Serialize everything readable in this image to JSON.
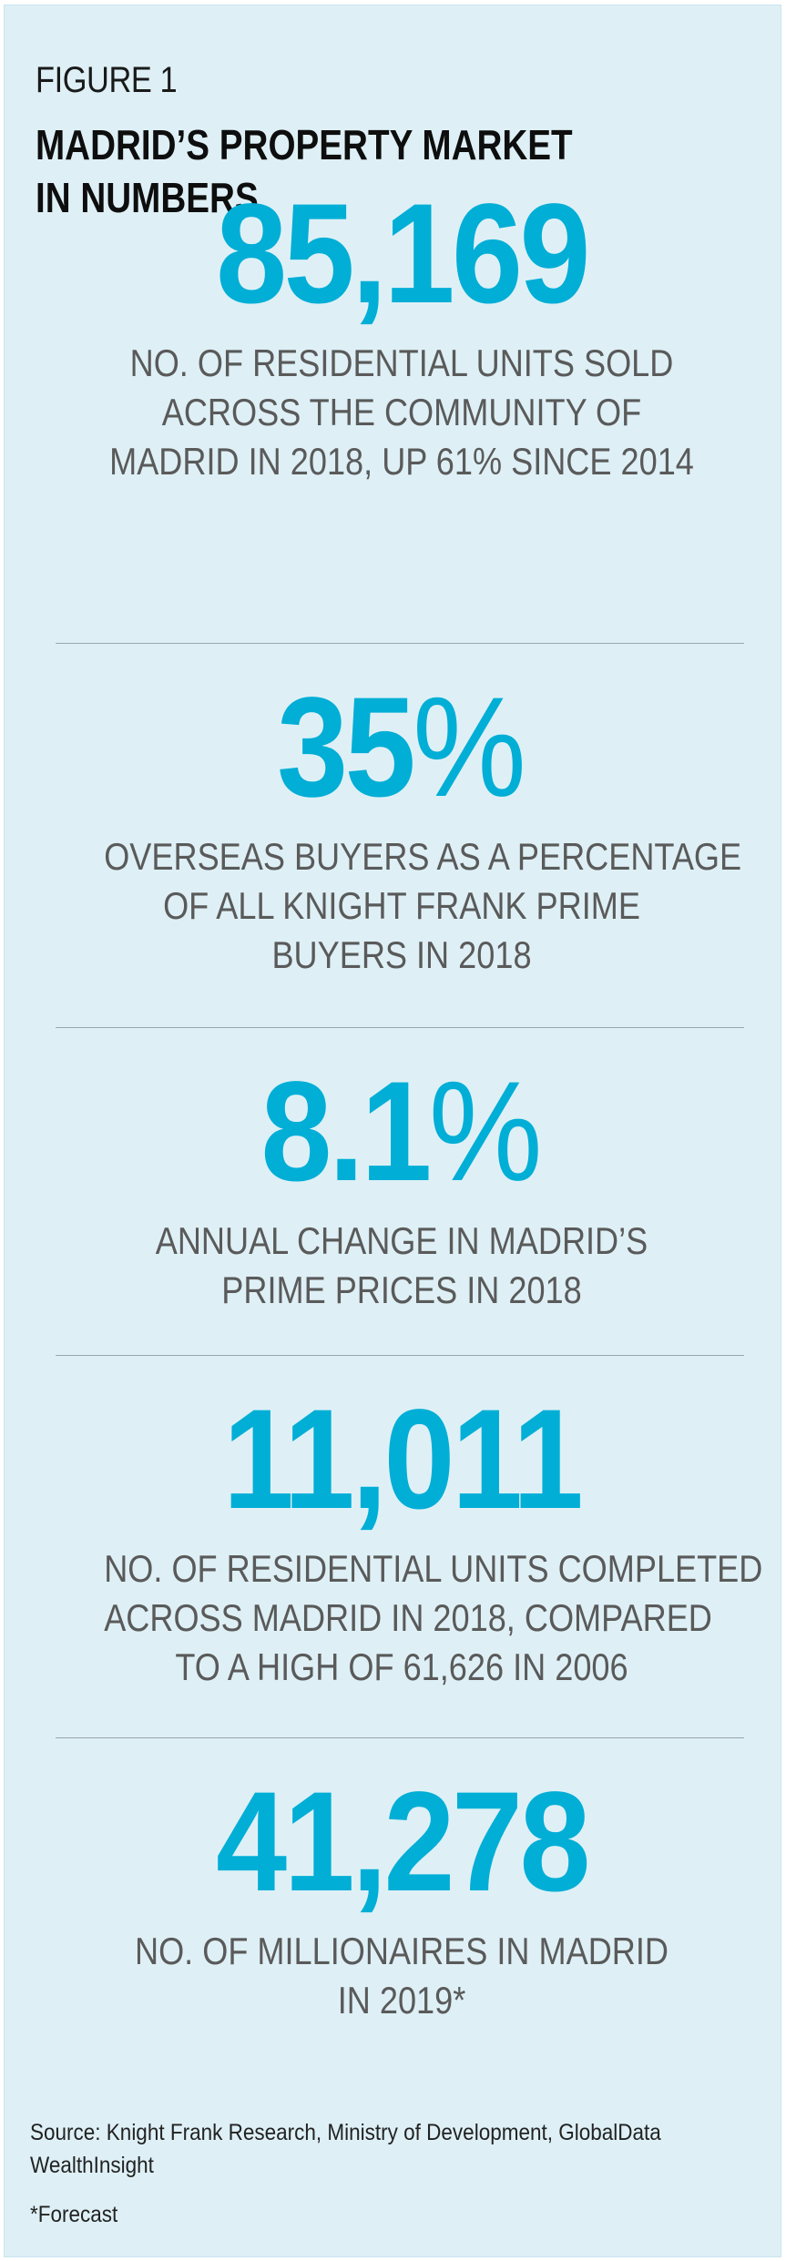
{
  "figure": {
    "label": "FIGURE 1",
    "title_lines": [
      "MADRID’S PROPERTY MARKET",
      "IN NUMBERS"
    ]
  },
  "stats": [
    {
      "value": "85,169",
      "suffix": "",
      "description_lines": [
        "NO. OF RESIDENTIAL UNITS SOLD",
        "ACROSS THE COMMUNITY OF",
        "MADRID IN 2018, UP 61% SINCE 2014"
      ]
    },
    {
      "value": "35",
      "suffix": "%",
      "description_lines": [
        "OVERSEAS BUYERS AS A PERCENTAGE",
        "OF ALL KNIGHT FRANK PRIME",
        "BUYERS IN 2018"
      ]
    },
    {
      "value": "8.1",
      "suffix": "%",
      "description_lines": [
        "ANNUAL CHANGE IN MADRID’S",
        "PRIME PRICES IN 2018"
      ]
    },
    {
      "value": "11,011",
      "suffix": "",
      "description_lines": [
        "NO. OF RESIDENTIAL UNITS COMPLETED",
        "ACROSS MADRID IN 2018, COMPARED",
        "TO A HIGH OF 61,626 IN 2006"
      ]
    },
    {
      "value": "41,278",
      "suffix": "",
      "description_lines": [
        "NO. OF MILLIONAIRES IN MADRID",
        "IN 2019*"
      ]
    }
  ],
  "source": "Source: Knight Frank Research, Ministry of Development, GlobalData WealthInsight",
  "footnote": "*Forecast",
  "colors": {
    "background": "#def0f6",
    "accent": "#00aed6",
    "body_text": "#5a5a5a"
  }
}
